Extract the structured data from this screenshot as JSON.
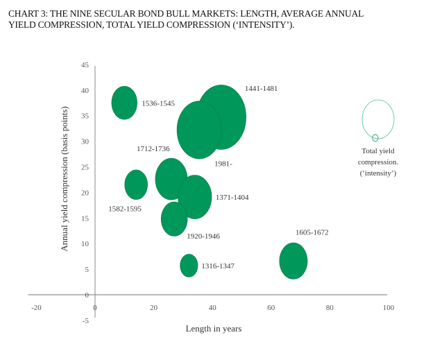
{
  "title_lines": [
    "CHART 3: THE NINE SECULAR BOND BULL MARKETS: LENGTH, AVERAGE ANNUAL",
    "YIELD COMPRESSION, TOTAL YIELD COMPRESSION (‘INTENSITY’)."
  ],
  "chart_data": {
    "type": "scatter",
    "subtype": "bubble",
    "title": "CHART 3: THE NINE SECULAR BOND BULL MARKETS: LENGTH, AVERAGE ANNUAL YIELD COMPRESSION, TOTAL YIELD COMPRESSION (‘INTENSITY’).",
    "xlabel": "Length in years",
    "ylabel": "Annual yield compression (basis points)",
    "xlim": [
      -20,
      100
    ],
    "ylim": [
      -5,
      45
    ],
    "xticks": [
      -20,
      0,
      20,
      40,
      60,
      80,
      100
    ],
    "yticks": [
      -5,
      0,
      5,
      10,
      15,
      20,
      25,
      30,
      35,
      40,
      45
    ],
    "grid": false,
    "color": "#00975a",
    "legend": {
      "label_lines": [
        "Total yield",
        "compression.",
        "(‘intensity’)"
      ],
      "placement": "right"
    },
    "points": [
      {
        "label": "1536-1545",
        "x": 10,
        "y": 37.5,
        "size": 375
      },
      {
        "label": "1441-1481",
        "x": 43,
        "y": 34.7,
        "size": 1420
      },
      {
        "label": "1981-",
        "x": 35.5,
        "y": 32.2,
        "size": 1140
      },
      {
        "label": "1712-1736",
        "x": 26,
        "y": 22.6,
        "size": 590
      },
      {
        "label": "1582-1595",
        "x": 14,
        "y": 21.5,
        "size": 300
      },
      {
        "label": "1371-1404",
        "x": 34,
        "y": 19.1,
        "size": 650
      },
      {
        "label": "1920-1946",
        "x": 27,
        "y": 14.8,
        "size": 400
      },
      {
        "label": "1316-1347",
        "x": 32,
        "y": 5.7,
        "size": 180
      },
      {
        "label": "1605-1672",
        "x": 67.6,
        "y": 6.6,
        "size": 450
      }
    ]
  }
}
